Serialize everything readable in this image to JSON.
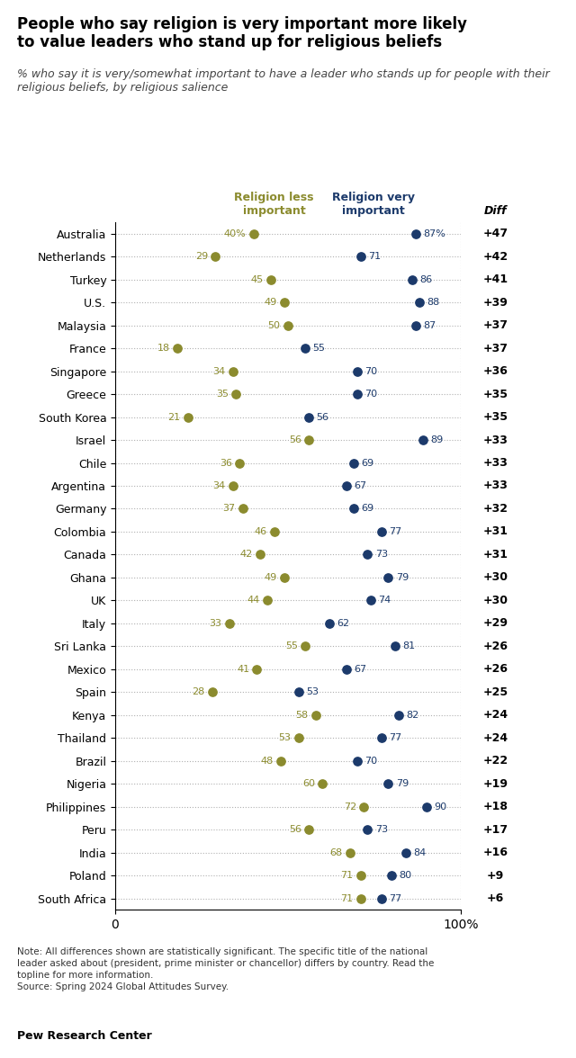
{
  "chart_data": {
    "type": "dot",
    "orientation": "horizontal",
    "title": "People who say religion is very important more likely\nto value leaders who stand up for religious beliefs",
    "subtitle": "% who say it is very/somewhat important to have a leader who stands up for people with their religious beliefs, by religious salience",
    "categories": [
      "Australia",
      "Netherlands",
      "Turkey",
      "U.S.",
      "Malaysia",
      "France",
      "Singapore",
      "Greece",
      "South Korea",
      "Israel",
      "Chile",
      "Argentina",
      "Germany",
      "Colombia",
      "Canada",
      "Ghana",
      "UK",
      "Italy",
      "Sri Lanka",
      "Mexico",
      "Spain",
      "Kenya",
      "Thailand",
      "Brazil",
      "Nigeria",
      "Philippines",
      "Peru",
      "India",
      "Poland",
      "South Africa"
    ],
    "series": [
      {
        "name": "Religion less\nimportant",
        "color": "#8B8B2E",
        "values": [
          40,
          29,
          45,
          49,
          50,
          18,
          34,
          35,
          21,
          56,
          36,
          34,
          37,
          46,
          42,
          49,
          44,
          33,
          55,
          41,
          28,
          58,
          53,
          48,
          60,
          72,
          56,
          68,
          71,
          71
        ],
        "value_labels": [
          "40%",
          "29",
          "45",
          "49",
          "50",
          "18",
          "34",
          "35",
          "21",
          "56",
          "36",
          "34",
          "37",
          "46",
          "42",
          "49",
          "44",
          "33",
          "55",
          "41",
          "28",
          "58",
          "53",
          "48",
          "60",
          "72",
          "56",
          "68",
          "71",
          "71"
        ]
      },
      {
        "name": "Religion very\nimportant",
        "color": "#1C3A6B",
        "values": [
          87,
          71,
          86,
          88,
          87,
          55,
          70,
          70,
          56,
          89,
          69,
          67,
          69,
          77,
          73,
          79,
          74,
          62,
          81,
          67,
          53,
          82,
          77,
          70,
          79,
          90,
          73,
          84,
          80,
          77
        ],
        "value_labels": [
          "87%",
          "71",
          "86",
          "88",
          "87",
          "55",
          "70",
          "70",
          "56",
          "89",
          "69",
          "67",
          "69",
          "77",
          "73",
          "79",
          "74",
          "62",
          "81",
          "67",
          "53",
          "82",
          "77",
          "70",
          "79",
          "90",
          "73",
          "84",
          "80",
          "77"
        ]
      },
      {
        "name": "Diff",
        "type": "text_column",
        "values": [
          47,
          42,
          41,
          39,
          37,
          37,
          36,
          35,
          35,
          33,
          33,
          33,
          32,
          31,
          31,
          30,
          30,
          29,
          26,
          26,
          25,
          24,
          24,
          22,
          19,
          18,
          17,
          16,
          9,
          6
        ],
        "value_labels": [
          "+47",
          "+42",
          "+41",
          "+39",
          "+37",
          "+37",
          "+36",
          "+35",
          "+35",
          "+33",
          "+33",
          "+33",
          "+32",
          "+31",
          "+31",
          "+30",
          "+30",
          "+29",
          "+26",
          "+26",
          "+25",
          "+24",
          "+24",
          "+22",
          "+19",
          "+18",
          "+17",
          "+16",
          "+9",
          "+6"
        ]
      }
    ],
    "xlim": [
      0,
      100
    ],
    "xticks": [
      0,
      {
        "value": 100,
        "label": "100%"
      }
    ],
    "grid": true,
    "marker": "o",
    "data_labels": true,
    "annotations": [
      "Note: All differences shown are statistically significant. The specific title of the national\nleader asked about (president, prime minister or chancellor) differs by country. Read the\ntopline for more information.\nSource: Spring 2024 Global Attitudes Survey.",
      "Pew Research Center"
    ]
  }
}
